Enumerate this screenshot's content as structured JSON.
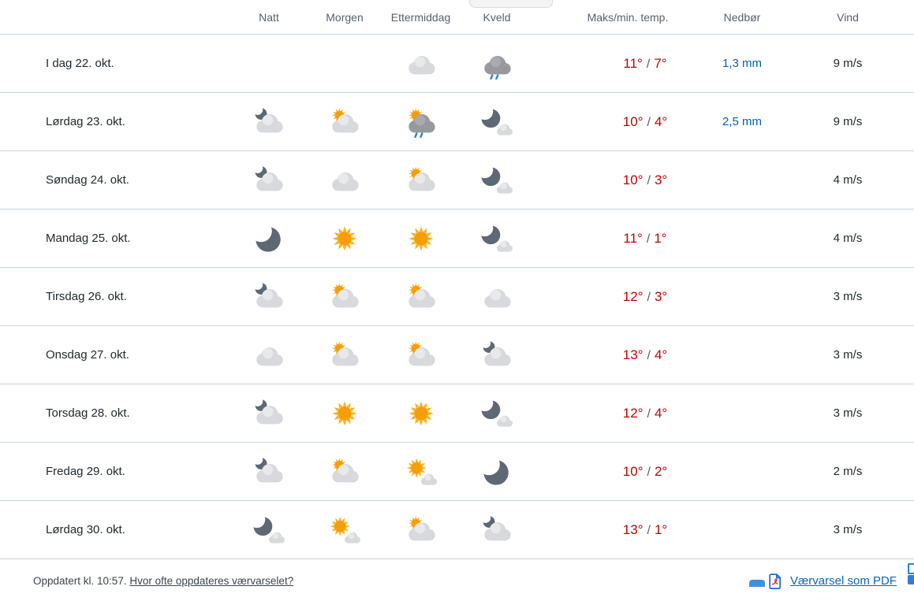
{
  "header": {
    "columns": [
      "Natt",
      "Morgen",
      "Ettermiddag",
      "Kveld",
      "Maks/min. temp.",
      "Nedbør",
      "Vind"
    ]
  },
  "table": {
    "temp_separator": "/",
    "rows": [
      {
        "day": "I dag 22. okt.",
        "icons": {
          "natt": "",
          "morgen": "",
          "ettermiddag": "cloud",
          "kveld": "rain"
        },
        "temp_max": "11°",
        "temp_min": "7°",
        "precip": "1,3 mm",
        "wind": "9 m/s"
      },
      {
        "day": "Lørdag 23. okt.",
        "icons": {
          "natt": "partlycloudy-night",
          "morgen": "partlycloudy-day",
          "ettermiddag": "rainshowers-day",
          "kveld": "fair-night"
        },
        "temp_max": "10°",
        "temp_min": "4°",
        "precip": "2,5 mm",
        "wind": "9 m/s"
      },
      {
        "day": "Søndag 24. okt.",
        "icons": {
          "natt": "partlycloudy-night",
          "morgen": "cloud",
          "ettermiddag": "partlycloudy-day",
          "kveld": "fair-night"
        },
        "temp_max": "10°",
        "temp_min": "3°",
        "precip": "",
        "wind": "4 m/s"
      },
      {
        "day": "Mandag 25. okt.",
        "icons": {
          "natt": "clear-night",
          "morgen": "clear-day",
          "ettermiddag": "clear-day",
          "kveld": "fair-night"
        },
        "temp_max": "11°",
        "temp_min": "1°",
        "precip": "",
        "wind": "4 m/s"
      },
      {
        "day": "Tirsdag 26. okt.",
        "icons": {
          "natt": "partlycloudy-night",
          "morgen": "partlycloudy-day",
          "ettermiddag": "partlycloudy-day",
          "kveld": "cloud"
        },
        "temp_max": "12°",
        "temp_min": "3°",
        "precip": "",
        "wind": "3 m/s"
      },
      {
        "day": "Onsdag 27. okt.",
        "icons": {
          "natt": "cloud",
          "morgen": "partlycloudy-day",
          "ettermiddag": "partlycloudy-day",
          "kveld": "partlycloudy-night"
        },
        "temp_max": "13°",
        "temp_min": "4°",
        "precip": "",
        "wind": "3 m/s"
      },
      {
        "day": "Torsdag 28. okt.",
        "icons": {
          "natt": "partlycloudy-night",
          "morgen": "clear-day",
          "ettermiddag": "clear-day",
          "kveld": "fair-night"
        },
        "temp_max": "12°",
        "temp_min": "4°",
        "precip": "",
        "wind": "3 m/s"
      },
      {
        "day": "Fredag 29. okt.",
        "icons": {
          "natt": "partlycloudy-night",
          "morgen": "partlycloudy-day",
          "ettermiddag": "fair-day",
          "kveld": "clear-night"
        },
        "temp_max": "10°",
        "temp_min": "2°",
        "precip": "",
        "wind": "2 m/s"
      },
      {
        "day": "Lørdag 30. okt.",
        "icons": {
          "natt": "fair-night",
          "morgen": "fair-day",
          "ettermiddag": "partlycloudy-day",
          "kveld": "partlycloudy-night"
        },
        "temp_max": "13°",
        "temp_min": "1°",
        "precip": "",
        "wind": "3 m/s"
      }
    ]
  },
  "footer": {
    "updated_text": "Oppdatert kl. 10:57.",
    "update_link": "Hvor ofte oppdateres værvarselet?",
    "pdf_icon": "pdf-file-icon",
    "pdf_link": "Værvarsel som PDF",
    "printer_icon": "printer-icon"
  },
  "colors": {
    "temp_max": "#c60000",
    "temp_min": "#c60000",
    "precip": "#0062ba",
    "link_blue": "#0b65c2",
    "header_text": "#56616c",
    "body_text": "#21292e",
    "divider": "#c6d3dc",
    "sun_core": "#f59e07",
    "sun_rays": "#fbb124",
    "moon": "#5d6874",
    "cloud_light": "#d7d9dc",
    "cloud_dark": "#97999e",
    "rain_drop": "#3386cf"
  }
}
